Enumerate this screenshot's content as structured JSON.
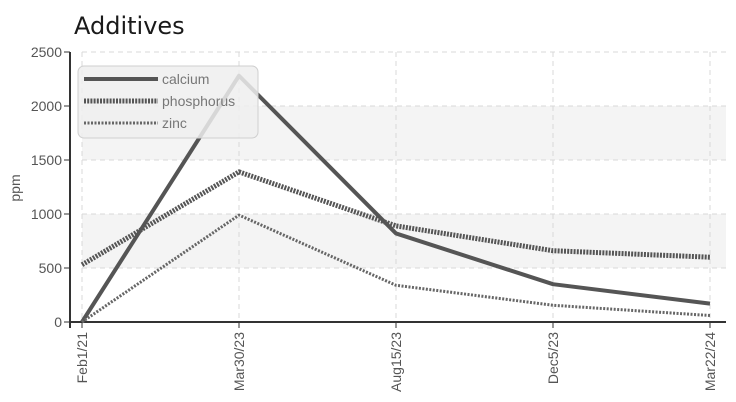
{
  "chart_data": {
    "type": "line",
    "title": "Additives",
    "xlabel": "",
    "ylabel": "ppm",
    "categories": [
      "Feb1/21",
      "Mar30/23",
      "Aug15/23",
      "Dec5/23",
      "Mar22/24"
    ],
    "yticks": [
      0,
      500,
      1000,
      1500,
      2000,
      2500
    ],
    "ylim": [
      0,
      2500
    ],
    "grid": true,
    "legend": "top-left",
    "series": [
      {
        "name": "calcium",
        "values": [
          0,
          2280,
          820,
          350,
          170
        ],
        "color": "#555555",
        "style": "solid"
      },
      {
        "name": "phosphorus",
        "values": [
          530,
          1390,
          890,
          660,
          600
        ],
        "color": "#555555",
        "style": "dotted-thick"
      },
      {
        "name": "zinc",
        "values": [
          0,
          990,
          340,
          155,
          60
        ],
        "color": "#666666",
        "style": "dotted-thin"
      }
    ]
  }
}
